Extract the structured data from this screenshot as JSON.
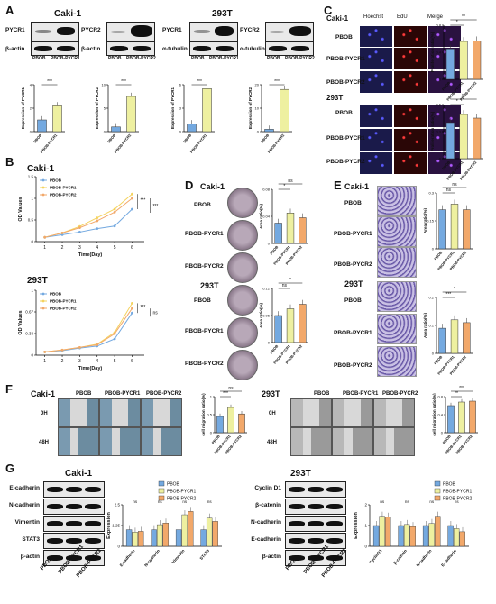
{
  "panels": {
    "A": "A",
    "B": "B",
    "C": "C",
    "D": "D",
    "E": "E",
    "F": "F",
    "G": "G"
  },
  "cell_lines": {
    "caki": "Caki-1",
    "t293": "293T"
  },
  "groups": {
    "pbob": "PBOB",
    "pycr1": "PBOB-PYCR1",
    "pycr2": "PBOB-PYCR2"
  },
  "panelA": {
    "blot_labels": {
      "pycr1": "PYCR1",
      "pycr2": "PYCR2",
      "actin": "β-actin",
      "tubulin": "α-tubulin"
    },
    "ylabel_pycr1": "Expression of PYCR1",
    "ylabel_pycr2": "Expression of PYCR2",
    "sig": "***",
    "x_pbob": "PBOB",
    "x_pycr1": "PBOB-PYCR1",
    "x_pycr2": "PBOB-PYCR2"
  },
  "panelB": {
    "ylabel": "OD Values",
    "xlabel": "Time(Day)",
    "legend": [
      "PBOB",
      "PBOB-PYCR1",
      "PBOB-PYCR2"
    ],
    "sig1": "***",
    "sig2": "***",
    "ns": "ns"
  },
  "panelC": {
    "cols": [
      "Hoechst",
      "EdU",
      "Merge"
    ],
    "ylabel": "Proliferation ratio(%)",
    "sig_a": "*",
    "sig_b": "**"
  },
  "panelD": {
    "ylabel": "Area ratio(%)",
    "ns": "ns",
    "sig": "*"
  },
  "panelE": {
    "ylabel": "Area ratio(%)",
    "ns": "ns",
    "sig": "*",
    "sig3": "***"
  },
  "panelF": {
    "rows": [
      "0H",
      "48H"
    ],
    "ylabel": "cell migration ratio(%)",
    "sig": "***",
    "sig2": "**",
    "ns": "ns"
  },
  "panelG": {
    "caki_rows": [
      "E-cadherin",
      "N-cadherin",
      "Vimentin",
      "STAT3",
      "β-actin"
    ],
    "t293_rows": [
      "Cyclin D1",
      "β-catenin",
      "N-cadherin",
      "E-cadherin",
      "β-actin"
    ],
    "ylabel": "Expression",
    "caki_x": [
      "E-cadherin",
      "N-cadherin",
      "Vimentin",
      "STAT3"
    ],
    "t293_x": [
      "CyclinD1",
      "β-catenin",
      "N-cadherin",
      "E-cadherin"
    ],
    "ns": "ns"
  },
  "colors": {
    "blue": "#74a9e0",
    "yellow": "#eef0a0",
    "orange": "#f2a86a",
    "grid": "#000"
  },
  "chart_data": [
    {
      "id": "A-caki-pycr1",
      "type": "bar",
      "categories": [
        "PBOB",
        "PBOB-PYCR1"
      ],
      "values": [
        1.0,
        2.2
      ],
      "ylim": [
        0,
        4
      ],
      "ylabel": "Expression of PYCR1"
    },
    {
      "id": "A-caki-pycr2",
      "type": "bar",
      "categories": [
        "PBOB",
        "PBOB-PYCR2"
      ],
      "values": [
        1.0,
        7.5
      ],
      "ylim": [
        0,
        10
      ],
      "ylabel": "Expression of PYCR2"
    },
    {
      "id": "A-293-pycr1",
      "type": "bar",
      "categories": [
        "PBOB",
        "PBOB-PYCR1"
      ],
      "values": [
        1.0,
        5.5
      ],
      "ylim": [
        0,
        6
      ],
      "ylabel": "Expression of PYCR1"
    },
    {
      "id": "A-293-pycr2",
      "type": "bar",
      "categories": [
        "PBOB",
        "PBOB-PYCR2"
      ],
      "values": [
        1.0,
        18
      ],
      "ylim": [
        0,
        20
      ],
      "ylabel": "Expression of PYCR2"
    },
    {
      "id": "B-caki",
      "type": "line",
      "x": [
        1,
        2,
        3,
        4,
        5,
        6
      ],
      "series": [
        {
          "name": "PBOB",
          "values": [
            0.1,
            0.16,
            0.22,
            0.3,
            0.36,
            0.75
          ]
        },
        {
          "name": "PBOB-PYCR1",
          "values": [
            0.1,
            0.2,
            0.35,
            0.55,
            0.75,
            1.1
          ]
        },
        {
          "name": "PBOB-PYCR2",
          "values": [
            0.1,
            0.2,
            0.32,
            0.48,
            0.68,
            1.0
          ]
        }
      ],
      "ylim": [
        0,
        1.5
      ],
      "xlabel": "Time(Day)",
      "ylabel": "OD Values"
    },
    {
      "id": "B-293",
      "type": "line",
      "x": [
        1,
        2,
        3,
        4,
        5,
        6
      ],
      "series": [
        {
          "name": "PBOB",
          "values": [
            0.05,
            0.07,
            0.11,
            0.14,
            0.25,
            0.65
          ]
        },
        {
          "name": "PBOB-PYCR1",
          "values": [
            0.05,
            0.08,
            0.12,
            0.17,
            0.35,
            0.8
          ]
        },
        {
          "name": "PBOB-PYCR2",
          "values": [
            0.05,
            0.08,
            0.12,
            0.16,
            0.33,
            0.72
          ]
        }
      ],
      "ylim": [
        0,
        1.0
      ],
      "xlabel": "Time(Day)",
      "ylabel": "OD Values"
    },
    {
      "id": "C-caki",
      "type": "bar",
      "categories": [
        "PBOB",
        "PBOB-PYCR1",
        "PBOB-PYCR2"
      ],
      "values": [
        0.45,
        0.56,
        0.57
      ],
      "ylim": [
        0,
        0.8
      ],
      "ylabel": "Proliferation ratio(%)"
    },
    {
      "id": "C-293",
      "type": "bar",
      "categories": [
        "PBOB",
        "PBOB-PYCR1",
        "PBOB-PYCR2"
      ],
      "values": [
        0.4,
        0.49,
        0.45
      ],
      "ylim": [
        0,
        0.6
      ],
      "ylabel": "Proliferation ratio(%)"
    },
    {
      "id": "D-caki",
      "type": "bar",
      "categories": [
        "PBOB",
        "PBOB-PYCR1",
        "PBOB-PYCR2"
      ],
      "values": [
        0.03,
        0.045,
        0.038
      ],
      "ylim": [
        0,
        0.08
      ],
      "ylabel": "Area ratio(%)"
    },
    {
      "id": "D-293",
      "type": "bar",
      "categories": [
        "PBOB",
        "PBOB-PYCR1",
        "PBOB-PYCR2"
      ],
      "values": [
        0.06,
        0.075,
        0.085
      ],
      "ylim": [
        0,
        0.12
      ],
      "ylabel": "Area ratio(%)"
    },
    {
      "id": "E-caki",
      "type": "bar",
      "categories": [
        "PBOB",
        "PBOB-PYCR1",
        "PBOB-PYCR2"
      ],
      "values": [
        0.21,
        0.24,
        0.21
      ],
      "ylim": [
        0,
        0.3
      ],
      "ylabel": "Area ratio(%)"
    },
    {
      "id": "E-293",
      "type": "bar",
      "categories": [
        "PBOB",
        "PBOB-PYCR1",
        "PBOB-PYCR2"
      ],
      "values": [
        0.09,
        0.12,
        0.11
      ],
      "ylim": [
        0,
        0.2
      ],
      "ylabel": "Area ratio(%)"
    },
    {
      "id": "F-caki",
      "type": "bar",
      "categories": [
        "PBOB",
        "PBOB-PYCR1",
        "PBOB-PYCR2"
      ],
      "values": [
        0.45,
        0.7,
        0.52
      ],
      "ylim": [
        0,
        1.0
      ],
      "ylabel": "cell migration ratio(%)"
    },
    {
      "id": "F-293",
      "type": "bar",
      "categories": [
        "PBOB",
        "PBOB-PYCR1",
        "PBOB-PYCR2"
      ],
      "values": [
        0.6,
        0.68,
        0.7
      ],
      "ylim": [
        0,
        0.8
      ],
      "ylabel": "cell migration ratio(%)"
    },
    {
      "id": "G-caki",
      "type": "bar",
      "categories": [
        "E-cadherin",
        "N-cadherin",
        "Vimentin",
        "STAT3"
      ],
      "series": [
        {
          "name": "PBOB",
          "values": [
            1.0,
            1.0,
            1.0,
            1.0
          ]
        },
        {
          "name": "PBOB-PYCR1",
          "values": [
            0.85,
            1.3,
            1.9,
            1.7
          ]
        },
        {
          "name": "PBOB-PYCR2",
          "values": [
            0.9,
            1.4,
            2.1,
            1.5
          ]
        }
      ],
      "ylim": [
        0,
        2.5
      ],
      "ylabel": "Expression"
    },
    {
      "id": "G-293",
      "type": "bar",
      "categories": [
        "CyclinD1",
        "β-catenin",
        "N-cadherin",
        "E-cadherin"
      ],
      "series": [
        {
          "name": "PBOB",
          "values": [
            1.0,
            1.0,
            1.0,
            1.0
          ]
        },
        {
          "name": "PBOB-PYCR1",
          "values": [
            1.45,
            1.05,
            1.1,
            0.85
          ]
        },
        {
          "name": "PBOB-PYCR2",
          "values": [
            1.4,
            0.95,
            1.45,
            0.7
          ]
        }
      ],
      "ylim": [
        0,
        2.0
      ],
      "ylabel": "Expression"
    }
  ]
}
